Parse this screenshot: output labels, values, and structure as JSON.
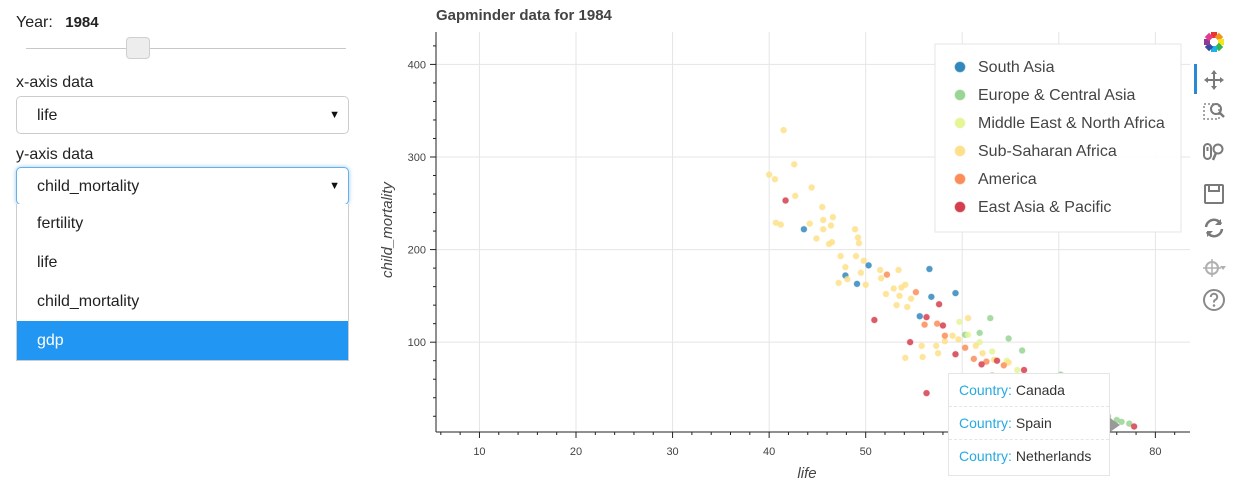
{
  "controls": {
    "year_label": "Year:",
    "year_value": "1984",
    "slider_fraction": 0.35,
    "x_label": "x-axis data",
    "x_value": "life",
    "y_label": "y-axis data",
    "y_value": "child_mortality",
    "y_options": [
      "fertility",
      "life",
      "child_mortality",
      "gdp"
    ],
    "y_highlighted": "gdp"
  },
  "tooltip": {
    "key": "Country:",
    "rows": [
      "Canada",
      "Spain",
      "Netherlands"
    ]
  },
  "toolbar": [
    "bokeh-logo-icon",
    "pan-icon",
    "box-zoom-icon",
    "wheel-zoom-icon",
    "save-icon",
    "reset-icon",
    "hover-icon",
    "help-icon"
  ],
  "chart_data": {
    "type": "scatter",
    "title": "Gapminder data for 1984",
    "xlabel": "life",
    "ylabel": "child_mortality",
    "xlim": [
      5.5,
      84
    ],
    "ylim": [
      3,
      435
    ],
    "xticks": [
      10,
      20,
      30,
      40,
      50,
      60,
      70,
      80
    ],
    "yticks": [
      100,
      200,
      300,
      400
    ],
    "grid": true,
    "legend_position": "top-right",
    "series": [
      {
        "name": "South Asia",
        "color": "#3288bd",
        "points": [
          [
            43.6,
            222
          ],
          [
            47.9,
            172
          ],
          [
            50.3,
            183
          ],
          [
            49.1,
            163
          ],
          [
            55.6,
            128
          ],
          [
            56.6,
            179
          ],
          [
            56.8,
            149
          ],
          [
            59.3,
            153
          ]
        ]
      },
      {
        "name": "Europe & Central Asia",
        "color": "#99d594",
        "points": [
          [
            60.3,
            108
          ],
          [
            61.8,
            110
          ],
          [
            62.9,
            126
          ],
          [
            64.8,
            104
          ],
          [
            66.2,
            91
          ],
          [
            70.2,
            65
          ],
          [
            71.5,
            55
          ],
          [
            72.6,
            40
          ],
          [
            74,
            28
          ],
          [
            75.1,
            20
          ],
          [
            76,
            16
          ],
          [
            76.5,
            14
          ],
          [
            77.3,
            12
          ]
        ]
      },
      {
        "name": "Middle East & North Africa",
        "color": "#e6f598",
        "points": [
          [
            59.7,
            122
          ],
          [
            60.6,
            108
          ],
          [
            61.8,
            100
          ],
          [
            63.1,
            90
          ],
          [
            64.6,
            80
          ],
          [
            65.7,
            70
          ],
          [
            66.9,
            60
          ],
          [
            68.1,
            52
          ],
          [
            69.2,
            45
          ],
          [
            70.1,
            35
          ],
          [
            71.8,
            28
          ],
          [
            73.5,
            22
          ]
        ]
      },
      {
        "name": "Sub-Saharan Africa",
        "color": "#fee08b",
        "points": [
          [
            40,
            281
          ],
          [
            40.6,
            276
          ],
          [
            40.7,
            229
          ],
          [
            41.2,
            227
          ],
          [
            41.5,
            329
          ],
          [
            42.7,
            258
          ],
          [
            42.6,
            292
          ],
          [
            44.4,
            267
          ],
          [
            44.2,
            228
          ],
          [
            44.9,
            212
          ],
          [
            45.6,
            232
          ],
          [
            45.5,
            246
          ],
          [
            45.6,
            222
          ],
          [
            46.5,
            208
          ],
          [
            46.6,
            235
          ],
          [
            46.4,
            226
          ],
          [
            46.2,
            206
          ],
          [
            47.4,
            193
          ],
          [
            47.9,
            181
          ],
          [
            48.1,
            168
          ],
          [
            47.2,
            164
          ],
          [
            48.9,
            222
          ],
          [
            49,
            193
          ],
          [
            49.2,
            213
          ],
          [
            49.3,
            207
          ],
          [
            49.5,
            175
          ],
          [
            49.8,
            188
          ],
          [
            50,
            162
          ],
          [
            51.5,
            178
          ],
          [
            51.6,
            169
          ],
          [
            52.1,
            152
          ],
          [
            52.9,
            158
          ],
          [
            53.4,
            178
          ],
          [
            53.7,
            159
          ],
          [
            53.5,
            150
          ],
          [
            54.1,
            162
          ],
          [
            53.2,
            140
          ],
          [
            54.3,
            138
          ],
          [
            54.7,
            147
          ],
          [
            55.8,
            96
          ],
          [
            55.9,
            84
          ],
          [
            57.3,
            96
          ],
          [
            57.5,
            88
          ],
          [
            58.2,
            101
          ],
          [
            59,
            107
          ],
          [
            59.6,
            103
          ],
          [
            60.6,
            126
          ],
          [
            61.4,
            96
          ],
          [
            62.1,
            88
          ],
          [
            63.3,
            81
          ],
          [
            64.8,
            78
          ],
          [
            54.1,
            83
          ]
        ]
      },
      {
        "name": "America",
        "color": "#fc8d59",
        "points": [
          [
            52.2,
            173
          ],
          [
            55.2,
            154
          ],
          [
            56.1,
            119
          ],
          [
            57.4,
            120
          ],
          [
            58.2,
            107
          ],
          [
            60.3,
            94
          ],
          [
            61.2,
            82
          ],
          [
            62.5,
            79
          ],
          [
            63.1,
            64
          ],
          [
            64.3,
            75
          ],
          [
            65.6,
            63
          ],
          [
            66.8,
            58
          ],
          [
            67.8,
            50
          ],
          [
            68.9,
            45
          ],
          [
            70.2,
            38
          ],
          [
            71.4,
            32
          ],
          [
            72.2,
            28
          ],
          [
            73.1,
            22
          ],
          [
            74.1,
            18
          ],
          [
            75.2,
            15
          ]
        ]
      },
      {
        "name": "East Asia & Pacific",
        "color": "#d53e4f",
        "points": [
          [
            41.7,
            253
          ],
          [
            50.9,
            124
          ],
          [
            54.6,
            100
          ],
          [
            56.3,
            127
          ],
          [
            57.6,
            141
          ],
          [
            58,
            118
          ],
          [
            59.3,
            87
          ],
          [
            56.3,
            45
          ],
          [
            62,
            76
          ],
          [
            63.6,
            80
          ],
          [
            66.4,
            70
          ],
          [
            69.2,
            43
          ],
          [
            71.6,
            32
          ],
          [
            73.4,
            22
          ],
          [
            77.8,
            9
          ]
        ]
      }
    ]
  }
}
